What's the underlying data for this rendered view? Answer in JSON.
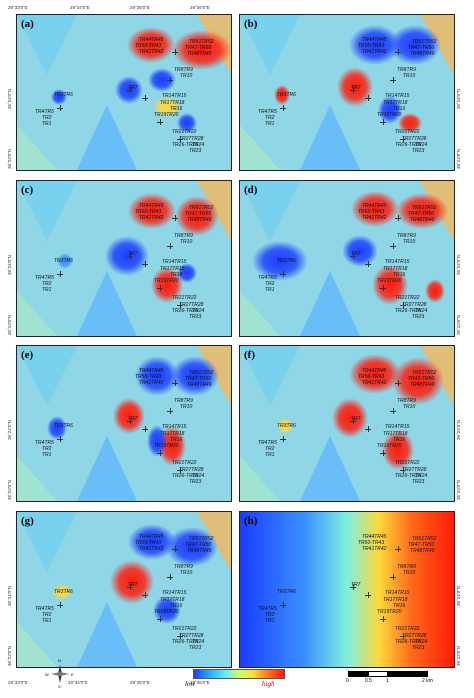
{
  "panels": [
    {
      "label": "(a)"
    },
    {
      "label": "(b)"
    },
    {
      "label": "(c)"
    },
    {
      "label": "(d)"
    },
    {
      "label": "(e)"
    },
    {
      "label": "(f)"
    },
    {
      "label": "(g)"
    },
    {
      "label": "(h)"
    }
  ],
  "sites": {
    "g1": "TR44TR45",
    "g2": "TR50-TR43",
    "g3": "TR41TR42",
    "g4": "TR51TR52",
    "g5": "TR47-TR50",
    "g6": "TR48TR49",
    "g7": "TR8TR9",
    "g8": "TR10",
    "g9": "TR7",
    "g10": "TR14TR15",
    "g11": "TR17TR18",
    "g12": "TR16",
    "g13": "TR19TR20",
    "g14": "TR21TR22",
    "g15": "TR27TR28",
    "g16": "TR26-TR25",
    "g17": "TR24",
    "g18": "TR23",
    "g19": "TR3TR6",
    "g20": "TR4TR5",
    "g21": "TR2",
    "g22": "TR1"
  },
  "axes": {
    "lon_ticks": [
      "29°33'0\"E",
      "29°34'0\"E",
      "29°35'0\"E",
      "29°36'0\"E"
    ],
    "lat_ticks": [
      "36°24'0\"N",
      "36°23'0\"N"
    ]
  },
  "legend": {
    "low": "low",
    "high": "high"
  },
  "scale_bar": {
    "t0": "0",
    "t1": "0.5",
    "t2": "1",
    "t3": "2 km"
  },
  "compass": {
    "n": "N",
    "s": "S",
    "e": "E",
    "w": "W"
  },
  "colors": {
    "low": "#1a3cff",
    "mid": "#5ee8ff",
    "high": "#ff1a0a"
  }
}
